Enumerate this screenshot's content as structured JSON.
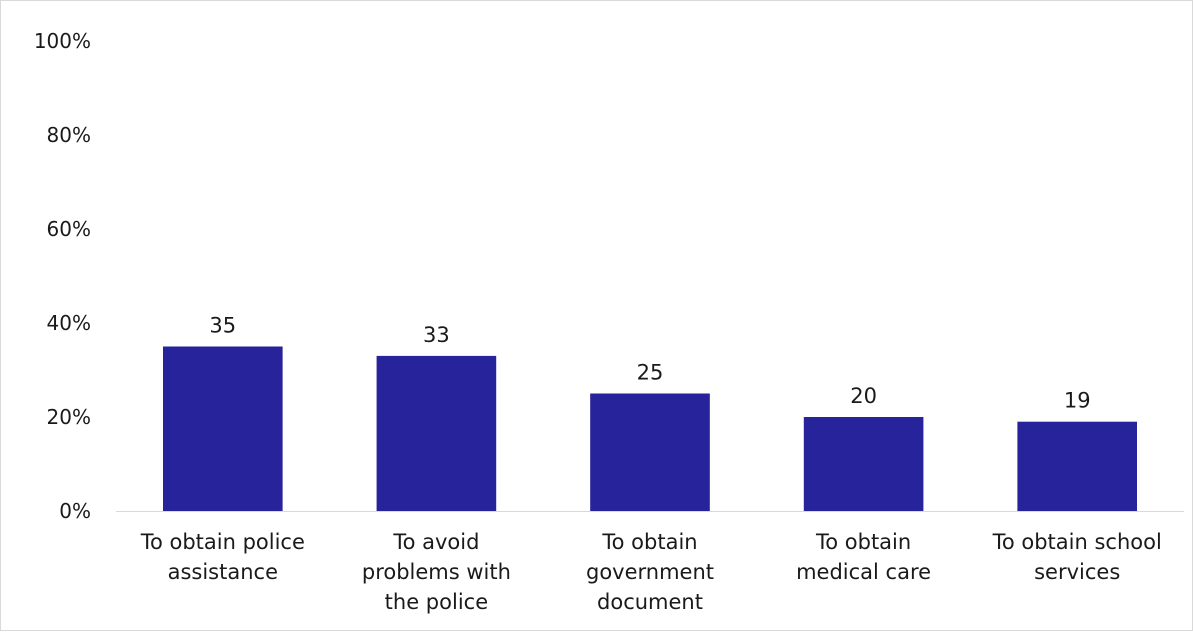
{
  "chart_data": {
    "type": "bar",
    "title": "",
    "xlabel": "",
    "ylabel": "",
    "categories": [
      [
        "To obtain police",
        "assistance"
      ],
      [
        "To avoid",
        "problems with",
        "the police"
      ],
      [
        "To obtain",
        "government",
        "document"
      ],
      [
        "To obtain",
        "medical care"
      ],
      [
        "To obtain school",
        "services"
      ]
    ],
    "values": [
      35,
      33,
      25,
      20,
      19
    ],
    "value_labels": [
      "35",
      "33",
      "25",
      "20",
      "19"
    ],
    "ylim": [
      0,
      100
    ],
    "yticks": [
      0,
      20,
      40,
      60,
      80,
      100
    ],
    "ytick_labels": [
      "0%",
      "20%",
      "40%",
      "60%",
      "80%",
      "100%"
    ],
    "grid": false,
    "legend": "none",
    "bar_color": "#27239a"
  }
}
